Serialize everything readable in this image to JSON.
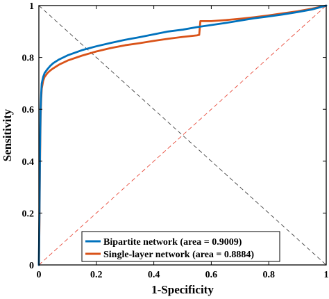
{
  "chart_data": {
    "type": "line",
    "title": "",
    "xlabel": "1-Specificity",
    "ylabel": "Sensitivity",
    "xlim": [
      0,
      1
    ],
    "ylim": [
      0,
      1
    ],
    "xticks": [
      0,
      0.2,
      0.4,
      0.6,
      0.8,
      1
    ],
    "yticks": [
      0,
      0.2,
      0.4,
      0.6,
      0.8,
      1
    ],
    "xtick_labels": [
      "0",
      "0.2",
      "0.4",
      "0.6",
      "0.8",
      "1"
    ],
    "ytick_labels": [
      "0",
      "0.2",
      "0.4",
      "0.6",
      "0.8",
      "1"
    ],
    "grid": false,
    "legend_position": "bottom-center",
    "series": [
      {
        "name": "Bipartite network (area = 0.9009)",
        "color": "#0072BD",
        "x": [
          0,
          0.002,
          0.004,
          0.006,
          0.008,
          0.01,
          0.015,
          0.02,
          0.03,
          0.04,
          0.05,
          0.07,
          0.1,
          0.15,
          0.2,
          0.25,
          0.3,
          0.35,
          0.4,
          0.45,
          0.5,
          0.55,
          0.6,
          0.65,
          0.7,
          0.75,
          0.8,
          0.85,
          0.9,
          0.95,
          1.0
        ],
        "y": [
          0,
          0.2,
          0.45,
          0.6,
          0.66,
          0.7,
          0.725,
          0.74,
          0.755,
          0.768,
          0.778,
          0.792,
          0.808,
          0.828,
          0.843,
          0.856,
          0.868,
          0.878,
          0.889,
          0.9,
          0.907,
          0.917,
          0.925,
          0.933,
          0.942,
          0.951,
          0.958,
          0.966,
          0.975,
          0.985,
          1.0
        ]
      },
      {
        "name": "Single-layer network (area = 0.8884)",
        "color": "#D95319",
        "x": [
          0,
          0.002,
          0.004,
          0.006,
          0.008,
          0.01,
          0.015,
          0.02,
          0.03,
          0.04,
          0.05,
          0.07,
          0.1,
          0.15,
          0.2,
          0.25,
          0.3,
          0.35,
          0.4,
          0.45,
          0.5,
          0.55,
          0.558,
          0.562,
          0.6,
          0.65,
          0.7,
          0.75,
          0.8,
          0.85,
          0.9,
          0.95,
          1.0
        ],
        "y": [
          0,
          0.15,
          0.4,
          0.57,
          0.64,
          0.68,
          0.71,
          0.725,
          0.74,
          0.75,
          0.758,
          0.772,
          0.788,
          0.807,
          0.823,
          0.836,
          0.847,
          0.855,
          0.864,
          0.872,
          0.879,
          0.885,
          0.887,
          0.94,
          0.94,
          0.944,
          0.949,
          0.955,
          0.962,
          0.97,
          0.978,
          0.988,
          1.0
        ]
      }
    ],
    "reference_lines": [
      {
        "from": [
          0,
          0
        ],
        "to": [
          1,
          1
        ],
        "color": "#E84A3A",
        "style": "dashed"
      },
      {
        "from": [
          0,
          1
        ],
        "to": [
          1,
          0
        ],
        "color": "#444444",
        "style": "dashed"
      }
    ]
  }
}
